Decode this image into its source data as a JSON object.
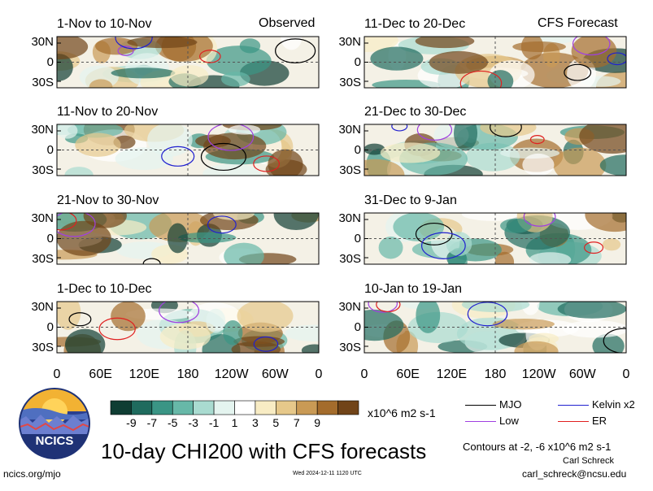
{
  "chart_data": {
    "type": "heatmap",
    "title": "10-day CHI200 with CFS forecasts",
    "variable": "CHI200",
    "panel_labels": {
      "observed": "Observed",
      "forecast": "CFS Forecast"
    },
    "y_ticks": [
      "30N",
      "0",
      "30S"
    ],
    "x_ticks": [
      "0",
      "60E",
      "120E",
      "180",
      "120W",
      "60W",
      "0"
    ],
    "panels": [
      {
        "title": "1-Nov to 10-Nov",
        "source": "Observed"
      },
      {
        "title": "11-Nov to 20-Nov",
        "source": "Observed"
      },
      {
        "title": "21-Nov to 30-Nov",
        "source": "Observed"
      },
      {
        "title": "1-Dec to 10-Dec",
        "source": "Observed"
      },
      {
        "title": "11-Dec to 20-Dec",
        "source": "CFS Forecast"
      },
      {
        "title": "21-Dec to 30-Dec",
        "source": "CFS Forecast"
      },
      {
        "title": "31-Dec to 9-Jan",
        "source": "CFS Forecast"
      },
      {
        "title": "10-Jan to 19-Jan",
        "source": "CFS Forecast"
      }
    ],
    "colorbar": {
      "labels": [
        "-9",
        "-7",
        "-5",
        "-3",
        "-1",
        "1",
        "3",
        "5",
        "7",
        "9"
      ],
      "colors": [
        "#0f3d33",
        "#1f6b5e",
        "#3a9585",
        "#67b8a8",
        "#a9dbd0",
        "#e4f4ef",
        "#ffffff",
        "#f8ecc4",
        "#e6c88a",
        "#c99a55",
        "#a46c2c",
        "#714418"
      ],
      "units": "x10^6 m2 s-1"
    },
    "legend": [
      {
        "label": "MJO",
        "color": "#000000"
      },
      {
        "label": "Kelvin x2",
        "color": "#2020d0"
      },
      {
        "label": "Low",
        "color": "#a040e0"
      },
      {
        "label": "ER",
        "color": "#e02020"
      }
    ],
    "contour_note": "Contours at -2, -6 x10^6 m2 s-1"
  },
  "footer": {
    "logo_text": "NCICS",
    "url": "ncics.org/mjo",
    "timestamp": "Wed 2024-12-11 1120 UTC",
    "author": "Carl Schreck",
    "email": "carl_schreck@ncsu.edu"
  }
}
